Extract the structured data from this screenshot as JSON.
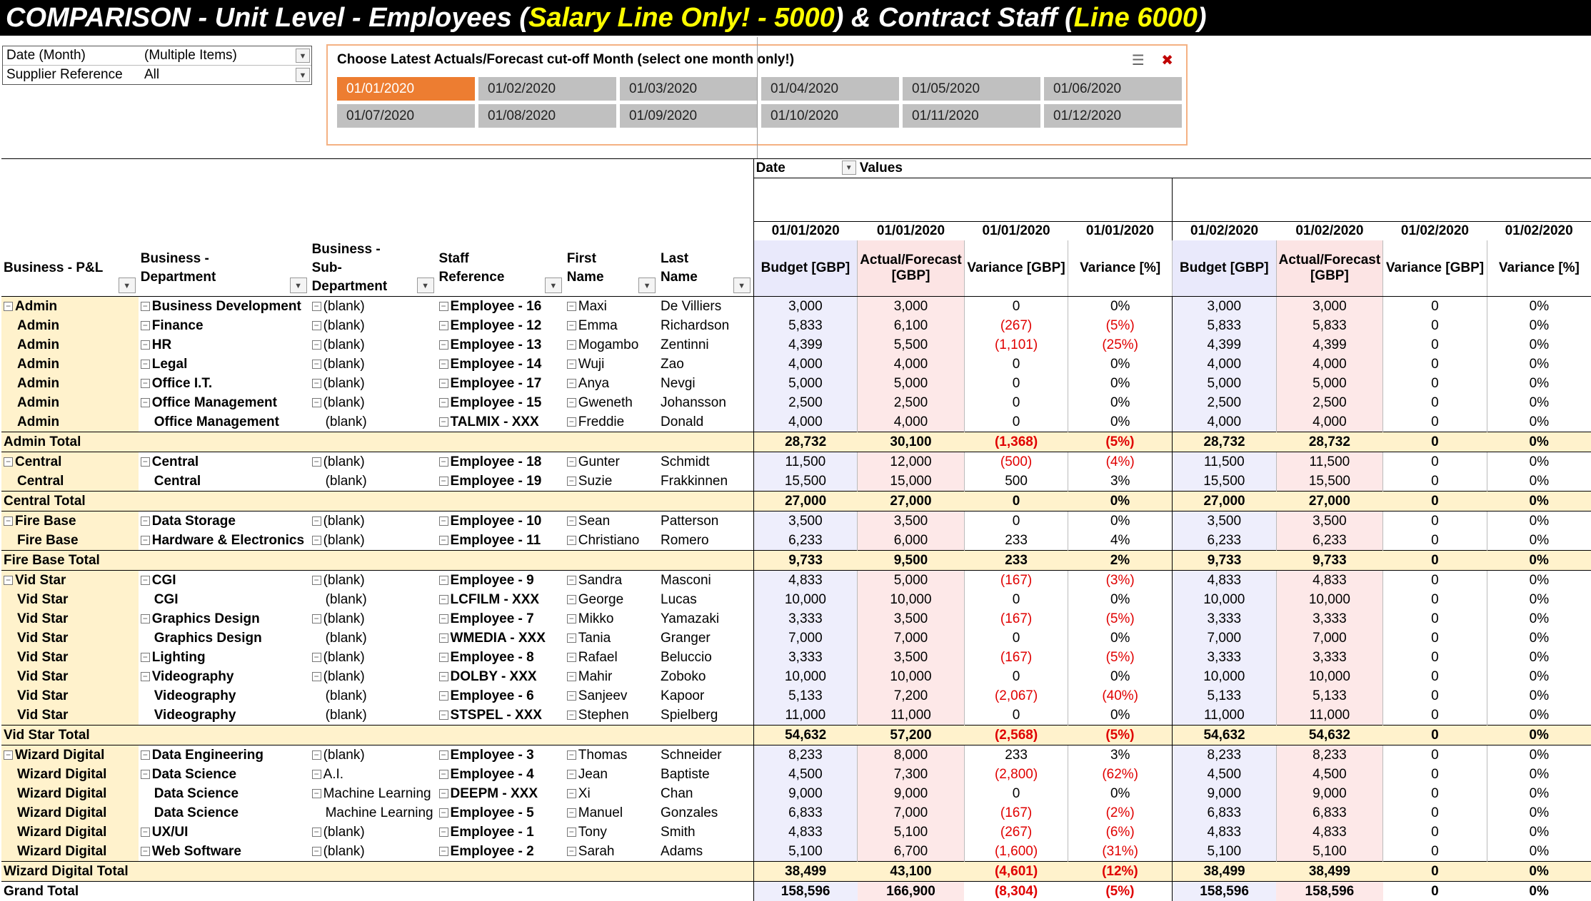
{
  "title": {
    "p1": "COMPARISON - Unit Level - Employees (",
    "p2": "Salary Line Only! - 5000",
    "p3": ") & Contract Staff (",
    "p4": "Line 6000",
    "p5": ")"
  },
  "filters": [
    {
      "label": "Date (Month)",
      "value": "(Multiple Items)"
    },
    {
      "label": "Supplier Reference",
      "value": "All"
    }
  ],
  "slicer": {
    "title": "Choose Latest Actuals/Forecast cut-off Month (select one month only!)",
    "items": [
      "01/01/2020",
      "01/02/2020",
      "01/03/2020",
      "01/04/2020",
      "01/05/2020",
      "01/06/2020",
      "01/07/2020",
      "01/08/2020",
      "01/09/2020",
      "01/10/2020",
      "01/11/2020",
      "01/12/2020"
    ],
    "selected_index": 0
  },
  "pivot": {
    "date_label": "Date",
    "values_label": "Values",
    "row_headers": [
      "Business - P&L",
      "Business - Department",
      "Business - Sub-Department",
      "Staff Reference",
      "First Name",
      "Last Name"
    ],
    "col_dates": [
      "01/01/2020",
      "01/01/2020",
      "01/01/2020",
      "01/01/2020",
      "01/02/2020",
      "01/02/2020",
      "01/02/2020",
      "01/02/2020"
    ],
    "col_headers": [
      "Budget [GBP]",
      "Actual/Forecast [GBP]",
      "Variance [GBP]",
      "Variance [%]",
      "Budget [GBP]",
      "Actual/Forecast [GBP]",
      "Variance [GBP]",
      "Variance [%]"
    ],
    "blank": "(blank)",
    "groups": [
      {
        "name": "Admin",
        "total_label": "Admin Total",
        "total": [
          "28,732",
          "30,100",
          "(1,368)",
          "(5%)",
          "28,732",
          "28,732",
          "0",
          "0%"
        ],
        "rows": [
          {
            "pl": "Admin",
            "dept": "Business Development",
            "sub": "(blank)",
            "staff": "Employee - 16",
            "first": "Maxi",
            "last": "De Villiers",
            "v": [
              "3,000",
              "3,000",
              "0",
              "0%",
              "3,000",
              "3,000",
              "0",
              "0%"
            ]
          },
          {
            "pl": "Admin",
            "dept": "Finance",
            "sub": "(blank)",
            "staff": "Employee - 12",
            "first": "Emma",
            "last": "Richardson",
            "v": [
              "5,833",
              "6,100",
              "(267)",
              "(5%)",
              "5,833",
              "5,833",
              "0",
              "0%"
            ]
          },
          {
            "pl": "Admin",
            "dept": "HR",
            "sub": "(blank)",
            "staff": "Employee - 13",
            "first": "Mogambo",
            "last": "Zentinni",
            "v": [
              "4,399",
              "5,500",
              "(1,101)",
              "(25%)",
              "4,399",
              "4,399",
              "0",
              "0%"
            ]
          },
          {
            "pl": "Admin",
            "dept": "Legal",
            "sub": "(blank)",
            "staff": "Employee - 14",
            "first": "Wuji",
            "last": "Zao",
            "v": [
              "4,000",
              "4,000",
              "0",
              "0%",
              "4,000",
              "4,000",
              "0",
              "0%"
            ]
          },
          {
            "pl": "Admin",
            "dept": "Office I.T.",
            "sub": "(blank)",
            "staff": "Employee - 17",
            "first": "Anya",
            "last": "Nevgi",
            "v": [
              "5,000",
              "5,000",
              "0",
              "0%",
              "5,000",
              "5,000",
              "0",
              "0%"
            ]
          },
          {
            "pl": "Admin",
            "dept": "Office Management",
            "sub": "(blank)",
            "staff": "Employee - 15",
            "first": "Gweneth",
            "last": "Johansson",
            "v": [
              "2,500",
              "2,500",
              "0",
              "0%",
              "2,500",
              "2,500",
              "0",
              "0%"
            ]
          },
          {
            "pl": "Admin",
            "dept": "Office Management",
            "sub": "(blank)",
            "staff": "TALMIX - XXX",
            "first": "Freddie",
            "last": "Donald",
            "v": [
              "4,000",
              "4,000",
              "0",
              "0%",
              "4,000",
              "4,000",
              "0",
              "0%"
            ]
          }
        ]
      },
      {
        "name": "Central",
        "total_label": "Central Total",
        "total": [
          "27,000",
          "27,000",
          "0",
          "0%",
          "27,000",
          "27,000",
          "0",
          "0%"
        ],
        "rows": [
          {
            "pl": "Central",
            "dept": "Central",
            "sub": "(blank)",
            "staff": "Employee - 18",
            "first": "Gunter",
            "last": "Schmidt",
            "v": [
              "11,500",
              "12,000",
              "(500)",
              "(4%)",
              "11,500",
              "11,500",
              "0",
              "0%"
            ]
          },
          {
            "pl": "Central",
            "dept": "Central",
            "sub": "(blank)",
            "staff": "Employee - 19",
            "first": "Suzie",
            "last": "Frakkinnen",
            "v": [
              "15,500",
              "15,000",
              "500",
              "3%",
              "15,500",
              "15,500",
              "0",
              "0%"
            ]
          }
        ]
      },
      {
        "name": "Fire Base",
        "total_label": "Fire Base Total",
        "total": [
          "9,733",
          "9,500",
          "233",
          "2%",
          "9,733",
          "9,733",
          "0",
          "0%"
        ],
        "rows": [
          {
            "pl": "Fire Base",
            "dept": "Data Storage",
            "sub": "(blank)",
            "staff": "Employee - 10",
            "first": "Sean",
            "last": "Patterson",
            "v": [
              "3,500",
              "3,500",
              "0",
              "0%",
              "3,500",
              "3,500",
              "0",
              "0%"
            ]
          },
          {
            "pl": "Fire Base",
            "dept": "Hardware & Electronics",
            "sub": "(blank)",
            "staff": "Employee - 11",
            "first": "Christiano",
            "last": "Romero",
            "v": [
              "6,233",
              "6,000",
              "233",
              "4%",
              "6,233",
              "6,233",
              "0",
              "0%"
            ]
          }
        ]
      },
      {
        "name": "Vid Star",
        "total_label": "Vid Star Total",
        "total": [
          "54,632",
          "57,200",
          "(2,568)",
          "(5%)",
          "54,632",
          "54,632",
          "0",
          "0%"
        ],
        "rows": [
          {
            "pl": "Vid Star",
            "dept": "CGI",
            "sub": "(blank)",
            "staff": "Employee - 9",
            "first": "Sandra",
            "last": "Masconi",
            "v": [
              "4,833",
              "5,000",
              "(167)",
              "(3%)",
              "4,833",
              "4,833",
              "0",
              "0%"
            ]
          },
          {
            "pl": "Vid Star",
            "dept": "CGI",
            "sub": "(blank)",
            "staff": "LCFILM - XXX",
            "first": "George",
            "last": "Lucas",
            "v": [
              "10,000",
              "10,000",
              "0",
              "0%",
              "10,000",
              "10,000",
              "0",
              "0%"
            ]
          },
          {
            "pl": "Vid Star",
            "dept": "Graphics Design",
            "sub": "(blank)",
            "staff": "Employee - 7",
            "first": "Mikko",
            "last": "Yamazaki",
            "v": [
              "3,333",
              "3,500",
              "(167)",
              "(5%)",
              "3,333",
              "3,333",
              "0",
              "0%"
            ]
          },
          {
            "pl": "Vid Star",
            "dept": "Graphics Design",
            "sub": "(blank)",
            "staff": "WMEDIA - XXX",
            "first": "Tania",
            "last": "Granger",
            "v": [
              "7,000",
              "7,000",
              "0",
              "0%",
              "7,000",
              "7,000",
              "0",
              "0%"
            ]
          },
          {
            "pl": "Vid Star",
            "dept": "Lighting",
            "sub": "(blank)",
            "staff": "Employee - 8",
            "first": "Rafael",
            "last": "Beluccio",
            "v": [
              "3,333",
              "3,500",
              "(167)",
              "(5%)",
              "3,333",
              "3,333",
              "0",
              "0%"
            ]
          },
          {
            "pl": "Vid Star",
            "dept": "Videography",
            "sub": "(blank)",
            "staff": "DOLBY - XXX",
            "first": "Mahir",
            "last": "Zoboko",
            "v": [
              "10,000",
              "10,000",
              "0",
              "0%",
              "10,000",
              "10,000",
              "0",
              "0%"
            ]
          },
          {
            "pl": "Vid Star",
            "dept": "Videography",
            "sub": "(blank)",
            "staff": "Employee - 6",
            "first": "Sanjeev",
            "last": "Kapoor",
            "v": [
              "5,133",
              "7,200",
              "(2,067)",
              "(40%)",
              "5,133",
              "5,133",
              "0",
              "0%"
            ]
          },
          {
            "pl": "Vid Star",
            "dept": "Videography",
            "sub": "(blank)",
            "staff": "STSPEL - XXX",
            "first": "Stephen",
            "last": "Spielberg",
            "v": [
              "11,000",
              "11,000",
              "0",
              "0%",
              "11,000",
              "11,000",
              "0",
              "0%"
            ]
          }
        ]
      },
      {
        "name": "Wizard Digital",
        "total_label": "Wizard Digital Total",
        "total": [
          "38,499",
          "43,100",
          "(4,601)",
          "(12%)",
          "38,499",
          "38,499",
          "0",
          "0%"
        ],
        "rows": [
          {
            "pl": "Wizard Digital",
            "dept": "Data Engineering",
            "sub": "(blank)",
            "staff": "Employee - 3",
            "first": "Thomas",
            "last": "Schneider",
            "v": [
              "8,233",
              "8,000",
              "233",
              "3%",
              "8,233",
              "8,233",
              "0",
              "0%"
            ]
          },
          {
            "pl": "Wizard Digital",
            "dept": "Data Science",
            "sub": "A.I.",
            "staff": "Employee - 4",
            "first": "Jean",
            "last": "Baptiste",
            "v": [
              "4,500",
              "7,300",
              "(2,800)",
              "(62%)",
              "4,500",
              "4,500",
              "0",
              "0%"
            ]
          },
          {
            "pl": "Wizard Digital",
            "dept": "Data Science",
            "sub": "Machine Learning",
            "staff": "DEEPM - XXX",
            "first": "Xi",
            "last": "Chan",
            "v": [
              "9,000",
              "9,000",
              "0",
              "0%",
              "9,000",
              "9,000",
              "0",
              "0%"
            ]
          },
          {
            "pl": "Wizard Digital",
            "dept": "Data Science",
            "sub": "Machine Learning",
            "staff": "Employee - 5",
            "first": "Manuel",
            "last": "Gonzales",
            "v": [
              "6,833",
              "7,000",
              "(167)",
              "(2%)",
              "6,833",
              "6,833",
              "0",
              "0%"
            ]
          },
          {
            "pl": "Wizard Digital",
            "dept": "UX/UI",
            "sub": "(blank)",
            "staff": "Employee - 1",
            "first": "Tony",
            "last": "Smith",
            "v": [
              "4,833",
              "5,100",
              "(267)",
              "(6%)",
              "4,833",
              "4,833",
              "0",
              "0%"
            ]
          },
          {
            "pl": "Wizard Digital",
            "dept": "Web Software",
            "sub": "(blank)",
            "staff": "Employee - 2",
            "first": "Sarah",
            "last": "Adams",
            "v": [
              "5,100",
              "6,700",
              "(1,600)",
              "(31%)",
              "5,100",
              "5,100",
              "0",
              "0%"
            ]
          }
        ]
      }
    ],
    "grand_label": "Grand Total",
    "grand": [
      "158,596",
      "166,900",
      "(8,304)",
      "(5%)",
      "158,596",
      "158,596",
      "0",
      "0%"
    ]
  }
}
